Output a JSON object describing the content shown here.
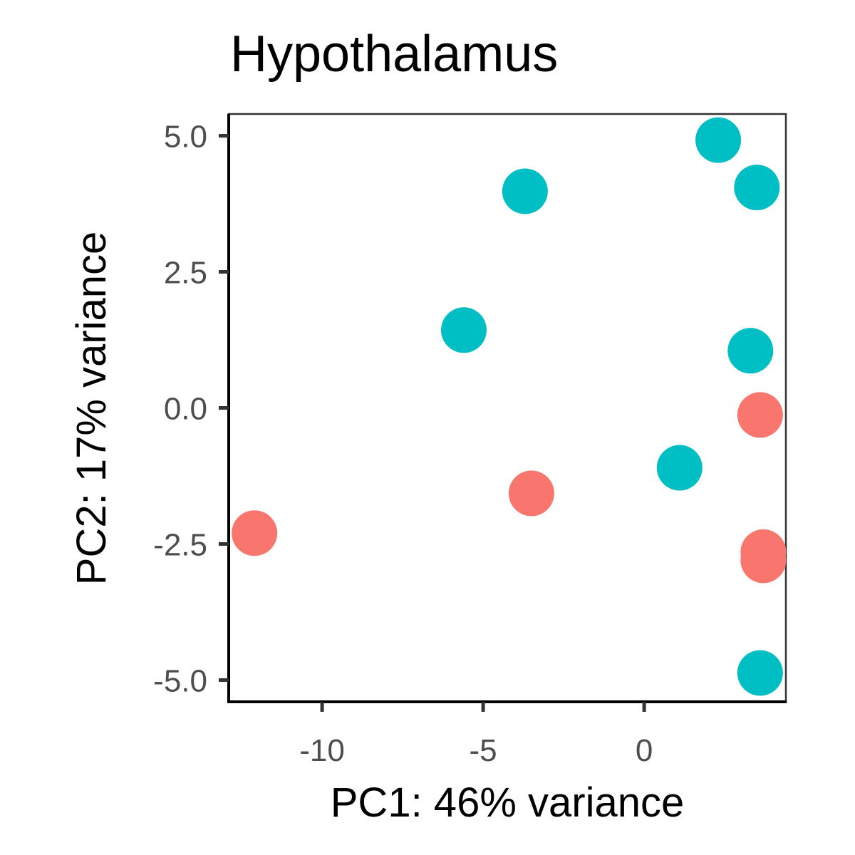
{
  "chart_data": {
    "type": "scatter",
    "title": "Hypothalamus",
    "xlabel": "PC1: 46% variance",
    "ylabel": "PC2: 17% variance",
    "xlim": [
      -12.9,
      4.4
    ],
    "ylim": [
      -5.4,
      5.4
    ],
    "x_ticks": [
      {
        "value": -10,
        "label": "-10"
      },
      {
        "value": -5,
        "label": "-5"
      },
      {
        "value": 0,
        "label": "0"
      }
    ],
    "y_ticks": [
      {
        "value": 5.0,
        "label": "5.0"
      },
      {
        "value": 2.5,
        "label": "2.5"
      },
      {
        "value": 0.0,
        "label": "0.0"
      },
      {
        "value": -2.5,
        "label": "-2.5"
      },
      {
        "value": -5.0,
        "label": "-5.0"
      }
    ],
    "grid": false,
    "legend": "none",
    "colors": {
      "group_1": "#F8766D",
      "group_2": "#00BFC4"
    },
    "series": [
      {
        "color": "#F8766D",
        "points": [
          {
            "x": 3.6,
            "y": -0.13
          },
          {
            "x": -3.5,
            "y": -1.57
          },
          {
            "x": -12.1,
            "y": -2.3
          },
          {
            "x": 3.7,
            "y": -2.65
          },
          {
            "x": 3.7,
            "y": -2.8
          }
        ]
      },
      {
        "color": "#00BFC4",
        "points": [
          {
            "x": 2.3,
            "y": 4.92
          },
          {
            "x": 3.5,
            "y": 4.05
          },
          {
            "x": -3.7,
            "y": 3.98
          },
          {
            "x": -5.6,
            "y": 1.43
          },
          {
            "x": 3.3,
            "y": 1.05
          },
          {
            "x": 1.1,
            "y": -1.1
          },
          {
            "x": 3.6,
            "y": -4.87
          }
        ]
      }
    ]
  }
}
